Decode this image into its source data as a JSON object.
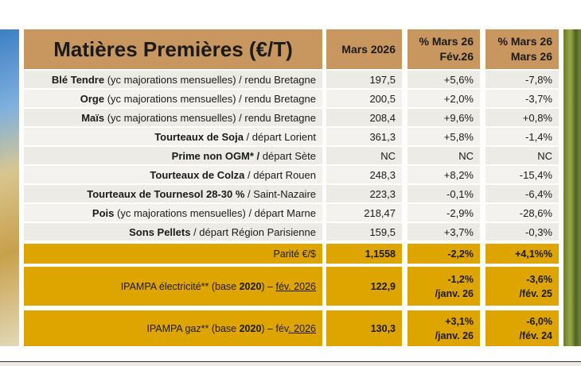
{
  "header": {
    "title": "Matières Premières (€/T)",
    "col_value": "Mars 2026",
    "col_month": [
      "% Mars 26",
      "Fév.26"
    ],
    "col_year": [
      "% Mars 26",
      "Mars 26"
    ]
  },
  "rows": [
    {
      "bold": "Blé Tendre",
      "rest": " (yc majorations mensuelles) / rendu Bretagne",
      "value": "197,5",
      "month": "+5,6%",
      "year": "-7,8%"
    },
    {
      "bold": "Orge",
      "rest": " (yc majorations mensuelles) / rendu Bretagne",
      "value": "200,5",
      "month": "+2,0%",
      "year": "-3,7%"
    },
    {
      "bold": "Maïs",
      "rest": " (yc majorations mensuelles) / rendu Bretagne",
      "value": "208,4",
      "month": "+9,6%",
      "year": "+0,8%"
    },
    {
      "bold": "Tourteaux de Soja",
      "rest": " / départ Lorient",
      "value": "361,3",
      "month": "+5,8%",
      "year": "-1,4%"
    },
    {
      "bold": "Prime non OGM* /",
      "rest": " départ Sète",
      "value": "NC",
      "month": "NC",
      "year": "NC"
    },
    {
      "bold": "Tourteaux de Colza",
      "rest": " / départ Rouen",
      "value": "248,3",
      "month": "+8,2%",
      "year": "-15,4%"
    },
    {
      "bold": "Tourteaux de Tournesol 28-30 %",
      "rest": " / Saint-Nazaire",
      "value": "223,3",
      "month": "-0,1%",
      "year": "-6,4%"
    },
    {
      "bold": "Pois",
      "rest": " (yc majorations mensuelles) / départ Marne",
      "value": "218,47",
      "month": "-2,9%",
      "year": "-28,6%"
    },
    {
      "bold": "Sons Pellets",
      "rest": " / départ Région Parisienne",
      "value": "159,5",
      "month": "+3,7%",
      "year": "-0,3%"
    }
  ],
  "parite": {
    "label": "Parité €/$",
    "value": "1,1558",
    "month": "-2,2%",
    "year": "+4,1%%"
  },
  "ipampa": [
    {
      "prefix": "IPAMPA électricité** (base ",
      "bold": "2020",
      "middle": ") – ",
      "underlined": "fév. 2026",
      "value": "122,9",
      "month": [
        "-1,2%",
        "/janv. 26"
      ],
      "year": [
        "-3,6%",
        "/fév. 25"
      ]
    },
    {
      "prefix": "IPAMPA gaz** (base ",
      "bold": "2020",
      "middle": ") – fév",
      "underlined": ". 2026",
      "value": "130,3",
      "month": [
        "+3,1%",
        "/janv. 26"
      ],
      "year": [
        "-6,0%",
        "/fév. 24"
      ]
    }
  ],
  "colors": {
    "header": "#c8965f",
    "gold": "#dea400"
  }
}
